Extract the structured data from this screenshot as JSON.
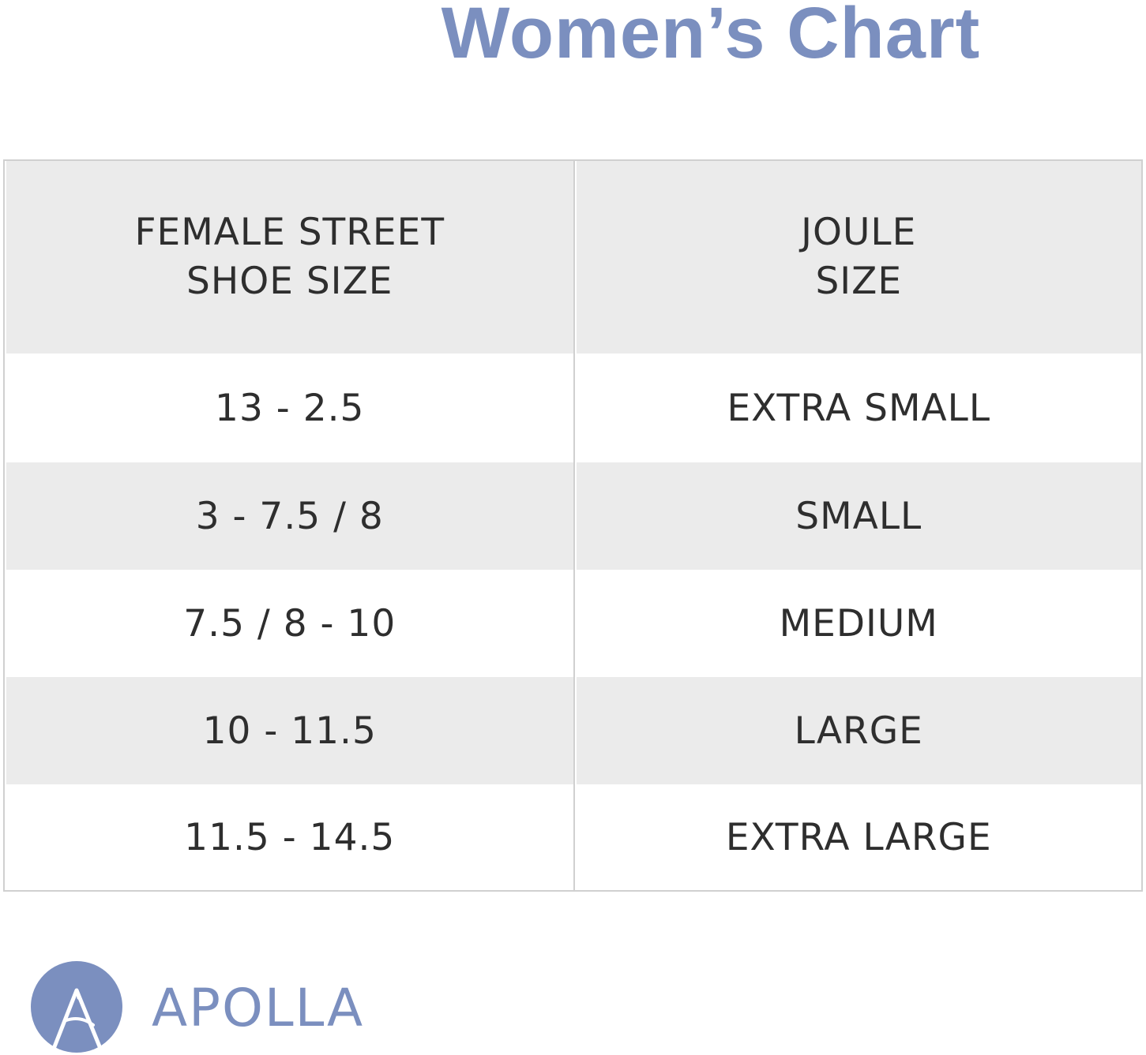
{
  "title": "Women’s Chart",
  "table": {
    "headers": {
      "left": [
        "FEMALE STREET",
        "SHOE SIZE"
      ],
      "right": [
        "JOULE",
        "SIZE"
      ]
    },
    "rows": [
      {
        "shoe_size": "13 - 2.5",
        "joule_size": "EXTRA SMALL"
      },
      {
        "shoe_size": "3 - 7.5 / 8",
        "joule_size": "SMALL"
      },
      {
        "shoe_size": "7.5 / 8 - 10",
        "joule_size": "MEDIUM"
      },
      {
        "shoe_size": "10 - 11.5",
        "joule_size": "LARGE"
      },
      {
        "shoe_size": "11.5 - 14.5",
        "joule_size": "EXTRA LARGE"
      }
    ],
    "colors": {
      "shaded_row": "#ebebeb",
      "border": "#d0d0d0",
      "text": "#2e2e2e"
    }
  },
  "brand": {
    "name": "APOLLA",
    "logo_icon": "apolla-a-logo-icon",
    "color": "#7b8fbf"
  }
}
